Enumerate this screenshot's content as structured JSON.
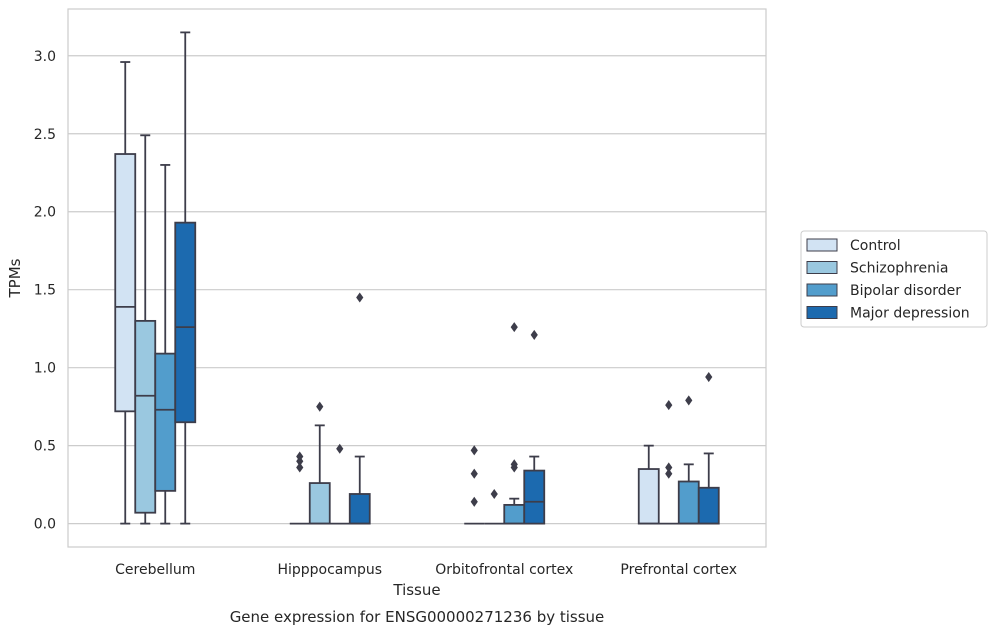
{
  "chart_data": {
    "type": "box",
    "title": "",
    "caption": "Gene expression for ENSG00000271236 by tissue",
    "xlabel": "Tissue",
    "ylabel": "TPMs",
    "ylim": [
      -0.15,
      3.3
    ],
    "yticks": [
      0.0,
      0.5,
      1.0,
      1.5,
      2.0,
      2.5,
      3.0
    ],
    "ytick_labels": [
      "0.0",
      "0.5",
      "1.0",
      "1.5",
      "2.0",
      "2.5",
      "3.0"
    ],
    "grid": "horizontal",
    "legend_position": "right",
    "categories": [
      "Cerebellum",
      "Hipppocampus",
      "Orbitofrontal cortex",
      "Prefrontal cortex"
    ],
    "series": [
      {
        "name": "Control",
        "color": "#d2e3f3",
        "boxes": [
          {
            "whislo": 0.0,
            "q1": 0.72,
            "med": 1.39,
            "q3": 2.37,
            "whishi": 2.96,
            "fliers": []
          },
          {
            "whislo": 0.0,
            "q1": 0.0,
            "med": 0.0,
            "q3": 0.0,
            "whishi": 0.0,
            "fliers": [
              0.36,
              0.4,
              0.43
            ]
          },
          {
            "whislo": 0.0,
            "q1": 0.0,
            "med": 0.0,
            "q3": 0.0,
            "whishi": 0.0,
            "fliers": [
              0.14,
              0.32,
              0.47
            ]
          },
          {
            "whislo": 0.0,
            "q1": 0.0,
            "med": 0.0,
            "q3": 0.35,
            "whishi": 0.5,
            "fliers": []
          }
        ]
      },
      {
        "name": "Schizophrenia",
        "color": "#9ac8e0",
        "boxes": [
          {
            "whislo": 0.0,
            "q1": 0.07,
            "med": 0.82,
            "q3": 1.3,
            "whishi": 2.49,
            "fliers": []
          },
          {
            "whislo": 0.0,
            "q1": 0.0,
            "med": 0.0,
            "q3": 0.26,
            "whishi": 0.63,
            "fliers": [
              0.75
            ]
          },
          {
            "whislo": 0.0,
            "q1": 0.0,
            "med": 0.0,
            "q3": 0.0,
            "whishi": 0.0,
            "fliers": [
              0.19
            ]
          },
          {
            "whislo": 0.0,
            "q1": 0.0,
            "med": 0.0,
            "q3": 0.0,
            "whishi": 0.0,
            "fliers": [
              0.32,
              0.36,
              0.76
            ]
          }
        ]
      },
      {
        "name": "Bipolar disorder",
        "color": "#529dcc",
        "boxes": [
          {
            "whislo": 0.0,
            "q1": 0.21,
            "med": 0.73,
            "q3": 1.09,
            "whishi": 2.3,
            "fliers": []
          },
          {
            "whislo": 0.0,
            "q1": 0.0,
            "med": 0.0,
            "q3": 0.0,
            "whishi": 0.0,
            "fliers": [
              0.48
            ]
          },
          {
            "whislo": 0.0,
            "q1": 0.0,
            "med": 0.0,
            "q3": 0.12,
            "whishi": 0.16,
            "fliers": [
              0.36,
              0.38,
              1.26
            ]
          },
          {
            "whislo": 0.0,
            "q1": 0.0,
            "med": 0.0,
            "q3": 0.27,
            "whishi": 0.38,
            "fliers": [
              0.79
            ]
          }
        ]
      },
      {
        "name": "Major depression",
        "color": "#1c6aaf",
        "boxes": [
          {
            "whislo": 0.0,
            "q1": 0.65,
            "med": 1.26,
            "q3": 1.93,
            "whishi": 3.15,
            "fliers": []
          },
          {
            "whislo": 0.0,
            "q1": 0.0,
            "med": 0.0,
            "q3": 0.19,
            "whishi": 0.43,
            "fliers": [
              1.45
            ]
          },
          {
            "whislo": 0.0,
            "q1": 0.0,
            "med": 0.14,
            "q3": 0.34,
            "whishi": 0.43,
            "fliers": [
              1.21
            ]
          },
          {
            "whislo": 0.0,
            "q1": 0.0,
            "med": 0.0,
            "q3": 0.23,
            "whishi": 0.45,
            "fliers": [
              0.94
            ]
          }
        ]
      }
    ]
  }
}
